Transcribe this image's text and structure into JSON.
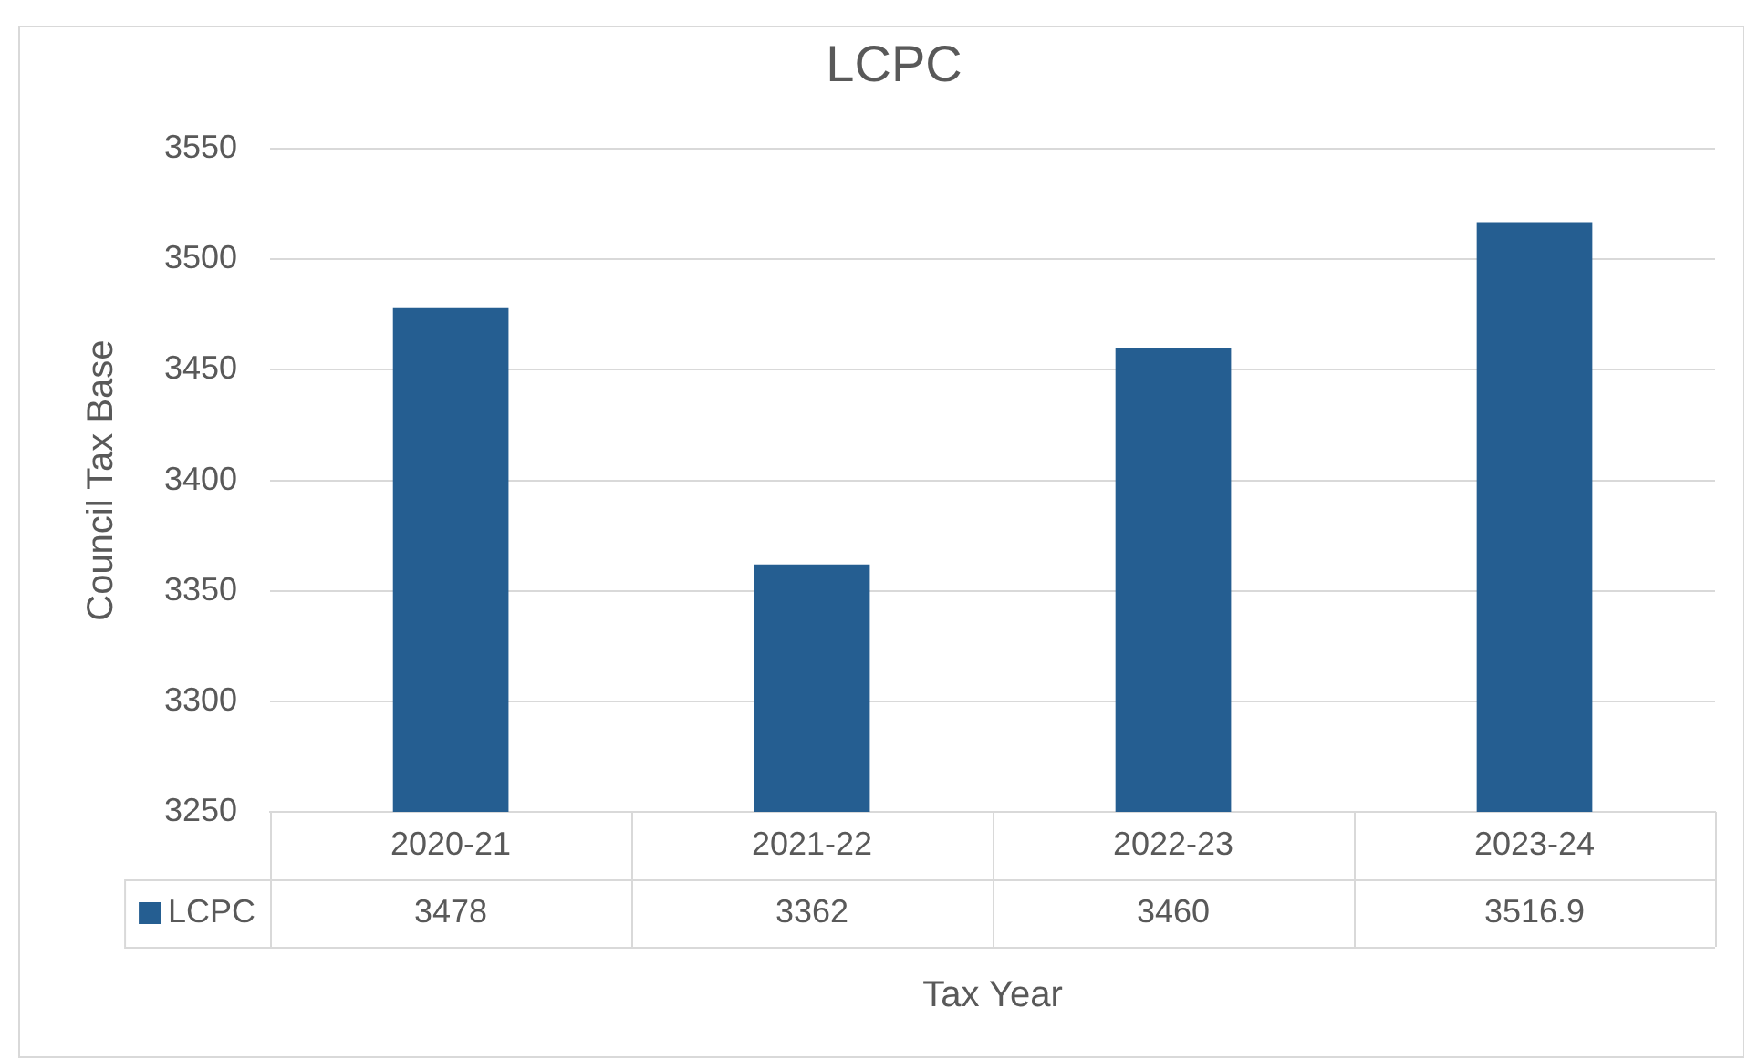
{
  "chart_data": {
    "type": "bar",
    "title": "LCPC",
    "xlabel": "Tax Year",
    "ylabel": "Council Tax Base",
    "categories": [
      "2020-21",
      "2021-22",
      "2022-23",
      "2023-24"
    ],
    "series": [
      {
        "name": "LCPC",
        "color": "#255e91",
        "values": [
          3478,
          3362,
          3460,
          3516.9
        ]
      }
    ],
    "ylim": [
      3250,
      3550
    ],
    "yticks": [
      3250,
      3300,
      3350,
      3400,
      3450,
      3500,
      3550
    ],
    "grid": "y",
    "legend": "bottom",
    "data_labels": true
  }
}
